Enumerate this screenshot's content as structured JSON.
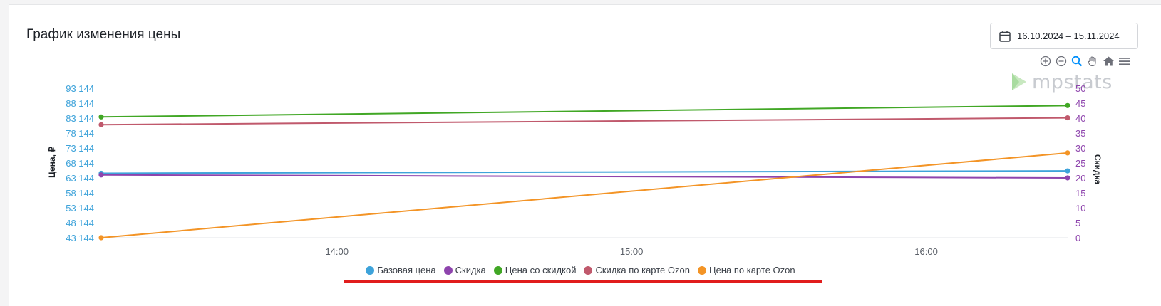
{
  "header": {
    "title": "График изменения цены",
    "date_range": "16.10.2024 – 15.11.2024"
  },
  "toolbar": {
    "icons": [
      "zoom-in-icon",
      "zoom-out-icon",
      "zoom-selection-icon",
      "pan-hand-icon",
      "home-reset-icon",
      "menu-icon"
    ]
  },
  "watermark": {
    "text": "mpstats"
  },
  "colors": {
    "base_price": "#3ea3da",
    "discount": "#8e44ad",
    "discounted_price": "#41a725",
    "ozon_card_discount": "#c0596c",
    "ozon_card_price": "#f39426",
    "left_axis_text": "#3ea3da",
    "right_axis_text": "#8e44ad",
    "highlight": "#e11d1d"
  },
  "chart_data": {
    "type": "line",
    "xlabel": "",
    "x_ticks": [
      "14:00",
      "15:00",
      "16:00"
    ],
    "x_range_hours": [
      13.2,
      16.48
    ],
    "x_tick_hours": [
      14,
      15,
      16
    ],
    "ylabel_left": "Цена, ₽",
    "ylabel_right": "Скидка",
    "y_left_ticks": [
      "43 144",
      "48 144",
      "53 144",
      "58 144",
      "63 144",
      "68 144",
      "73 144",
      "78 144",
      "83 144",
      "88 144",
      "93 144"
    ],
    "y_left_range": [
      43144,
      93144
    ],
    "y_right_ticks": [
      "0",
      "5",
      "10",
      "15",
      "20",
      "25",
      "30",
      "35",
      "40",
      "45",
      "50"
    ],
    "y_right_range": [
      0,
      50
    ],
    "grid": false,
    "series": [
      {
        "name": "Базовая цена",
        "axis": "left",
        "color_key": "base_price",
        "x": [
          13.2,
          16.48
        ],
        "values": [
          64700,
          65500
        ]
      },
      {
        "name": "Скидка",
        "axis": "right",
        "color_key": "discount",
        "x": [
          13.2,
          16.48
        ],
        "values": [
          21,
          20
        ]
      },
      {
        "name": "Цена со скидкой",
        "axis": "left",
        "color_key": "discounted_price",
        "x": [
          13.2,
          16.48
        ],
        "values": [
          83550,
          87350
        ]
      },
      {
        "name": "Скидка по карте Ozon",
        "axis": "right",
        "color_key": "ozon_card_discount",
        "x": [
          13.2,
          16.48
        ],
        "values": [
          37.8,
          40.1
        ]
      },
      {
        "name": "Цена по карте Ozon",
        "axis": "left",
        "color_key": "ozon_card_price",
        "x": [
          13.2,
          16.48
        ],
        "values": [
          43144,
          71500
        ]
      }
    ]
  }
}
